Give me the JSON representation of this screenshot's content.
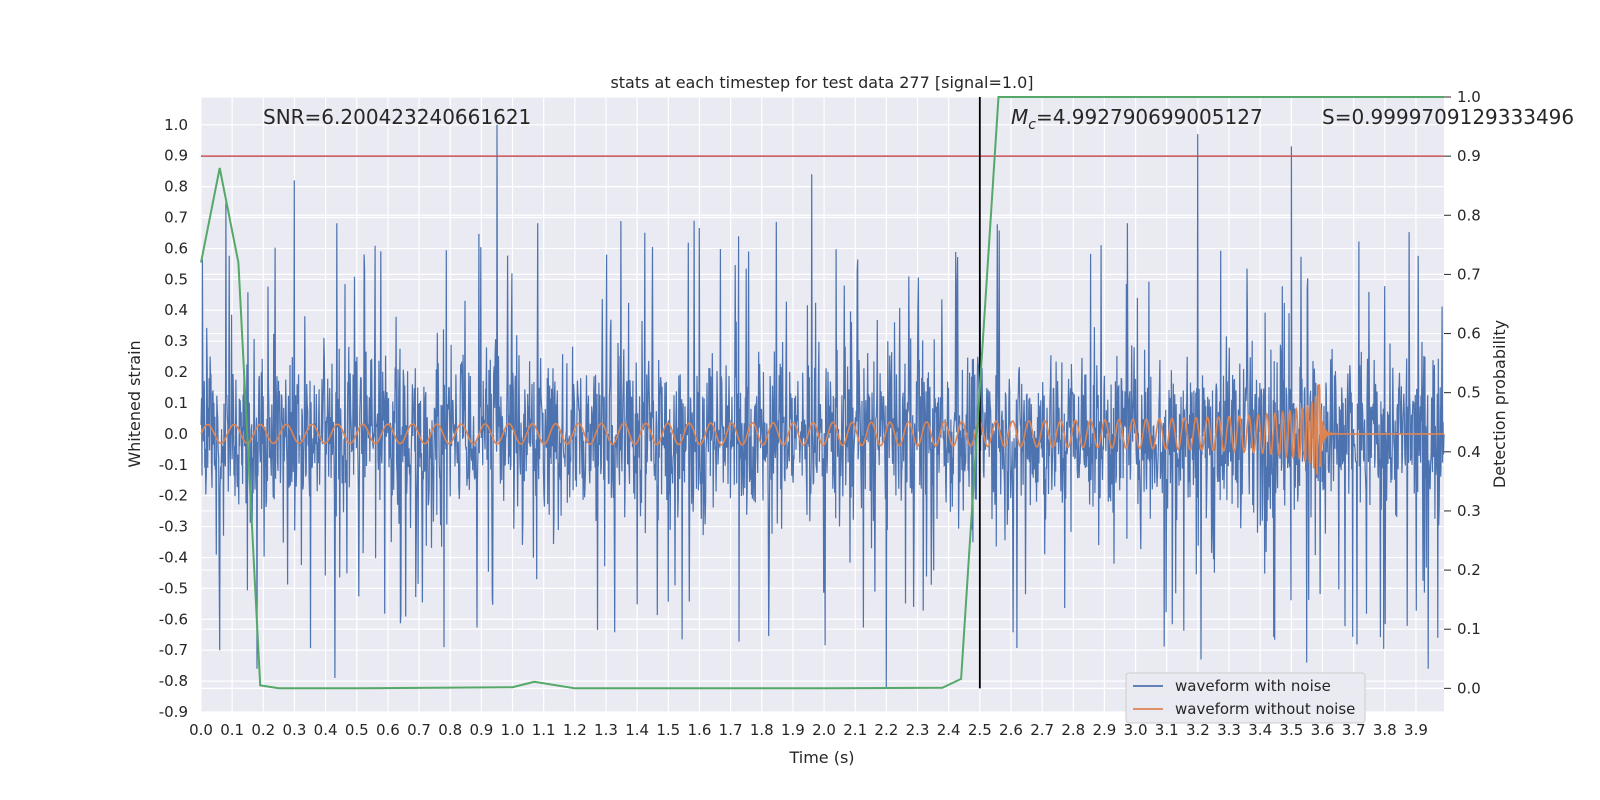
{
  "chart_data": {
    "type": "line",
    "title": "stats at each timestep for test data 277 [signal=1.0]",
    "xlabel": "Time (s)",
    "ylabel": "Whitened strain",
    "y2label": "Detection probability",
    "xlim": [
      0.0,
      3.99
    ],
    "ylim": [
      -0.9,
      1.09
    ],
    "y2lim": [
      -0.04,
      1.0
    ],
    "x_ticks": [
      "0.0",
      "0.1",
      "0.2",
      "0.3",
      "0.4",
      "0.5",
      "0.6",
      "0.7",
      "0.8",
      "0.9",
      "1.0",
      "1.1",
      "1.2",
      "1.3",
      "1.4",
      "1.5",
      "1.6",
      "1.7",
      "1.8",
      "1.9",
      "2.0",
      "2.1",
      "2.2",
      "2.3",
      "2.4",
      "2.5",
      "2.6",
      "2.7",
      "2.8",
      "2.9",
      "3.0",
      "3.1",
      "3.2",
      "3.3",
      "3.4",
      "3.5",
      "3.6",
      "3.7",
      "3.8",
      "3.9"
    ],
    "y_ticks": [
      "1.0",
      "0.9",
      "0.8",
      "0.7",
      "0.6",
      "0.5",
      "0.4",
      "0.3",
      "0.2",
      "0.1",
      "0.0",
      "-0.1",
      "-0.2",
      "-0.3",
      "-0.4",
      "-0.5",
      "-0.6",
      "-0.7",
      "-0.8",
      "-0.9"
    ],
    "y2_ticks": [
      "1.0",
      "0.9",
      "0.8",
      "0.7",
      "0.6",
      "0.5",
      "0.4",
      "0.3",
      "0.2",
      "0.1",
      "0.0"
    ],
    "annotations": {
      "snr": "SNR=6.200423240661621",
      "mc_symbol": "M",
      "mc_sub": "c",
      "mc_value": "=4.992790699005127",
      "s": "S=0.9999709129333496"
    },
    "threshold_line": {
      "axis": "y2",
      "value": 0.9,
      "color": "#c44e52"
    },
    "merger_marker": {
      "x": 2.5,
      "color": "#000000"
    },
    "series": [
      {
        "name": "waveform with noise",
        "color": "#4c72b0",
        "axis": "y",
        "noise_amplitude": 0.33,
        "notable_peaks": [
          {
            "x": 0.3,
            "y": 0.82
          },
          {
            "x": 0.95,
            "y": 1.0
          },
          {
            "x": 1.96,
            "y": 0.84
          },
          {
            "x": 3.2,
            "y": 0.97
          },
          {
            "x": 3.5,
            "y": 0.93
          },
          {
            "x": 0.08,
            "y": 0.75
          },
          {
            "x": 0.43,
            "y": -0.79
          },
          {
            "x": 0.18,
            "y": -0.76
          },
          {
            "x": 2.2,
            "y": -0.82
          },
          {
            "x": 3.21,
            "y": -0.73
          },
          {
            "x": 3.55,
            "y": -0.74
          },
          {
            "x": 3.94,
            "y": -0.76
          },
          {
            "x": 0.06,
            "y": -0.7
          },
          {
            "x": 0.78,
            "y": -0.69
          }
        ]
      },
      {
        "name": "waveform without noise",
        "color": "#dd8452",
        "axis": "y",
        "base_amplitude": 0.03,
        "peak_amplitude": 0.16,
        "merger_time": 3.59
      },
      {
        "name": "detection probability",
        "color": "#55a868",
        "axis": "y2",
        "x": [
          0.0,
          0.06,
          0.12,
          0.19,
          0.25,
          0.5,
          1.0,
          1.07,
          1.2,
          1.5,
          2.0,
          2.38,
          2.44,
          2.56,
          3.99
        ],
        "y": [
          0.72,
          0.88,
          0.72,
          0.005,
          0.0,
          0.0,
          0.002,
          0.011,
          0.0,
          0.0,
          0.0,
          0.001,
          0.016,
          1.0,
          1.0
        ]
      }
    ],
    "legend": {
      "position": "lower-right",
      "entries": [
        "waveform with noise",
        "waveform without noise"
      ]
    }
  }
}
